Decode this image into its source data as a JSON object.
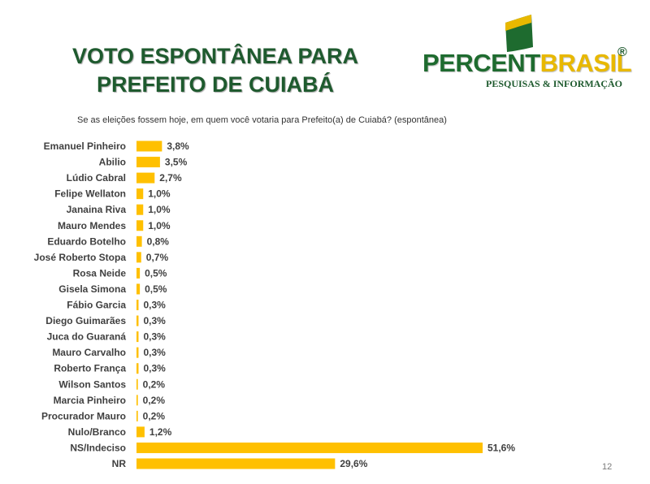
{
  "title_line1": "VOTO ESPONTÂNEA PARA",
  "title_line2": "PREFEITO DE CUIABÁ",
  "logo": {
    "word_percent": "PERCENT",
    "word_brasil": "BRASIL",
    "registered": "®",
    "tagline": "PESQUISAS & INFORMAÇÃO"
  },
  "question": "Se as eleições fossem hoje, em quem você votaria para Prefeito(a) de Cuiabá? (espontânea)",
  "page_number": "12",
  "colors": {
    "bar": "#FFC000",
    "title": "#1e5a2e",
    "logo_green": "#1e6b2f",
    "logo_yellow": "#e8b800"
  },
  "chart_data": {
    "type": "bar",
    "orientation": "horizontal",
    "title": "",
    "xlabel": "",
    "ylabel": "",
    "categories": [
      "Emanuel Pinheiro",
      "Abilio",
      "Lúdio Cabral",
      "Felipe Wellaton",
      "Janaina Riva",
      "Mauro Mendes",
      "Eduardo Botelho",
      "José Roberto Stopa",
      "Rosa Neide",
      "Gisela Simona",
      "Fábio Garcia",
      "Diego Guimarães",
      "Juca do Guaraná",
      "Mauro Carvalho",
      "Roberto França",
      "Wilson Santos",
      "Marcia Pinheiro",
      "Procurador Mauro",
      "Nulo/Branco",
      "NS/Indeciso",
      "NR"
    ],
    "values": [
      3.8,
      3.5,
      2.7,
      1.0,
      1.0,
      1.0,
      0.8,
      0.7,
      0.5,
      0.5,
      0.3,
      0.3,
      0.3,
      0.3,
      0.3,
      0.2,
      0.2,
      0.2,
      1.2,
      51.6,
      29.6
    ],
    "value_labels": [
      "3,8%",
      "3,5%",
      "2,7%",
      "1,0%",
      "1,0%",
      "1,0%",
      "0,8%",
      "0,7%",
      "0,5%",
      "0,5%",
      "0,3%",
      "0,3%",
      "0,3%",
      "0,3%",
      "0,3%",
      "0,2%",
      "0,2%",
      "0,2%",
      "1,2%",
      "51,6%",
      "29,6%"
    ],
    "unit": "%",
    "grid": false,
    "legend": "none"
  }
}
